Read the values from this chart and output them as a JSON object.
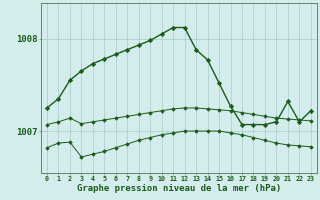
{
  "x": [
    0,
    1,
    2,
    3,
    4,
    5,
    6,
    7,
    8,
    9,
    10,
    11,
    12,
    13,
    14,
    15,
    16,
    17,
    18,
    19,
    20,
    21,
    22,
    23
  ],
  "line_main": [
    1007.25,
    1007.35,
    1007.55,
    1007.65,
    1007.73,
    1007.78,
    1007.83,
    1007.88,
    1007.93,
    1007.98,
    1008.05,
    1008.12,
    1008.12,
    1007.88,
    1007.77,
    1007.52,
    1007.27,
    1007.07,
    1007.07,
    1007.07,
    1007.1,
    1007.32,
    1007.1,
    1007.22
  ],
  "line_upper": [
    1007.07,
    1007.1,
    1007.14,
    1007.08,
    1007.1,
    1007.12,
    1007.14,
    1007.16,
    1007.18,
    1007.2,
    1007.22,
    1007.24,
    1007.25,
    1007.25,
    1007.24,
    1007.23,
    1007.22,
    1007.2,
    1007.18,
    1007.16,
    1007.14,
    1007.13,
    1007.12,
    1007.11
  ],
  "line_lower": [
    1006.82,
    1006.87,
    1006.88,
    1006.72,
    1006.75,
    1006.78,
    1006.82,
    1006.86,
    1006.9,
    1006.93,
    1006.96,
    1006.98,
    1007.0,
    1007.0,
    1007.0,
    1007.0,
    1006.98,
    1006.96,
    1006.93,
    1006.9,
    1006.87,
    1006.85,
    1006.84,
    1006.83
  ],
  "bg_color": "#d4ecec",
  "line_color": "#1a5c1a",
  "grid_color": "#a8cccc",
  "yticks": [
    1007.0,
    1008.0
  ],
  "ylim": [
    1006.55,
    1008.38
  ],
  "xlim": [
    -0.5,
    23.5
  ],
  "xlabel": "Graphe pression niveau de la mer (hPa)",
  "label_color": "#1a5c1a"
}
